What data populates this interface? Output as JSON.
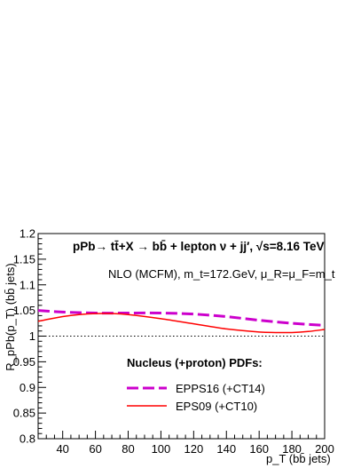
{
  "chart_data": {
    "type": "line",
    "title": "",
    "xlabel": "p_T (bb̄ jets)",
    "ylabel": "R_pPb(p_T) (bb̄ jets)",
    "xlim": [
      25,
      200
    ],
    "ylim": [
      0.8,
      1.2
    ],
    "xticks": [
      40,
      60,
      80,
      100,
      120,
      140,
      160,
      180,
      200
    ],
    "yticks": [
      0.8,
      0.85,
      0.9,
      0.95,
      1.0,
      1.05,
      1.1,
      1.15,
      1.2
    ],
    "ytick_labels": [
      "0.8",
      "0.85",
      "0.9",
      "0.95",
      "1",
      "1.05",
      "1.1",
      "1.15",
      "1.2"
    ],
    "reference_line": 1.0,
    "annotations": {
      "process": "pPb→ tt̄+X → bb̄ + lepton ν + jj′, √s=8.16 TeV",
      "setup": "NLO (MCFM), m_t=172.GeV, μ_R=μ_F=m_t"
    },
    "legend": {
      "title": "Nucleus (+proton) PDFs:",
      "placement": "bottom-center"
    },
    "series": [
      {
        "name": "EPPS16 (+CT14)",
        "color": "#cc00cc",
        "style": "dashed",
        "x": [
          25,
          40,
          60,
          80,
          100,
          120,
          140,
          160,
          180,
          200
        ],
        "y": [
          1.05,
          1.047,
          1.045,
          1.045,
          1.045,
          1.043,
          1.038,
          1.031,
          1.025,
          1.021
        ]
      },
      {
        "name": "EPS09 (+CT10)",
        "color": "#ff0000",
        "style": "solid",
        "x": [
          25,
          40,
          50,
          60,
          70,
          80,
          100,
          120,
          140,
          160,
          170,
          180,
          190,
          200
        ],
        "y": [
          1.029,
          1.038,
          1.042,
          1.044,
          1.044,
          1.042,
          1.034,
          1.024,
          1.014,
          1.008,
          1.007,
          1.007,
          1.009,
          1.013
        ]
      }
    ]
  }
}
